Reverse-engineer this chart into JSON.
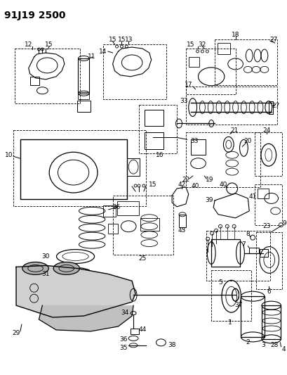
{
  "title": "91J19 2500",
  "background_color": "#ffffff",
  "line_color": "#000000",
  "title_fontsize": 10,
  "label_fontsize": 6.5,
  "figsize": [
    4.1,
    5.33
  ],
  "dpi": 100
}
